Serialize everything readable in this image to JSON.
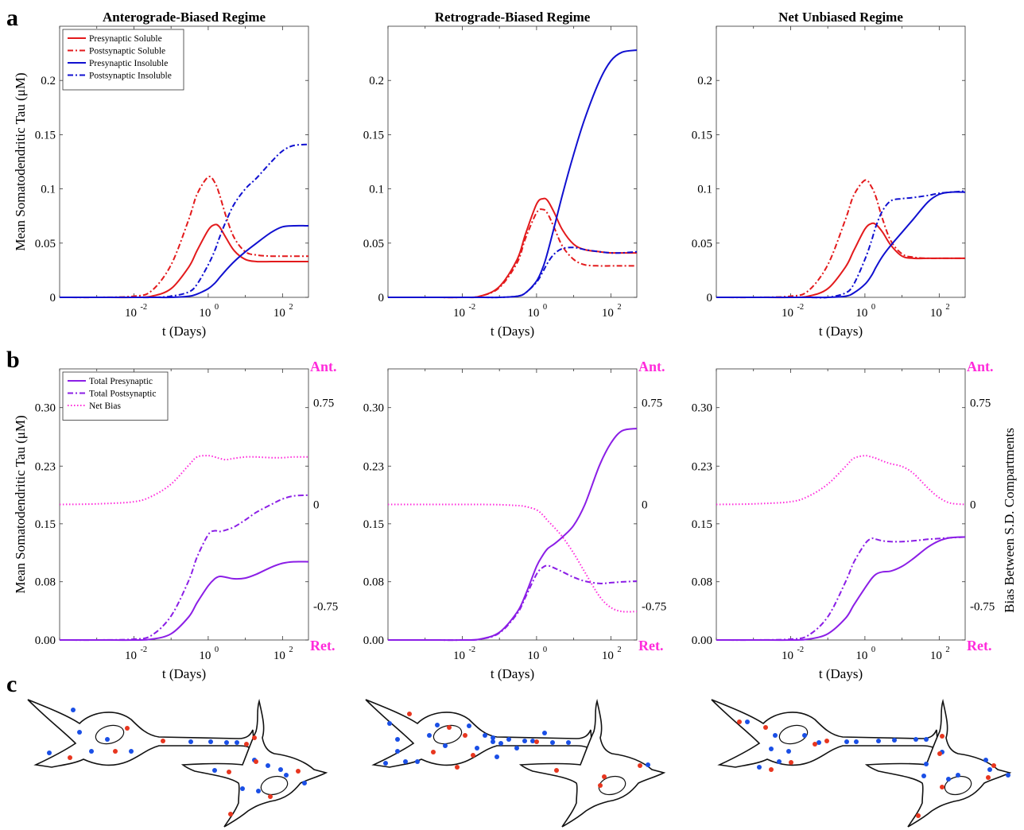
{
  "panel_letters": [
    "a",
    "b",
    "c"
  ],
  "colors": {
    "red": "#e31a1c",
    "blue": "#1010d0",
    "purple": "#8b1ee6",
    "magenta": "#ff2bdb",
    "dot_red": "#e8361f",
    "dot_blue": "#1a4fe6"
  },
  "shared": {
    "xlabel": "t (Days)",
    "ylabel": "Mean Somatodendritic Tau (μM)",
    "y2label": "Bias Between S.D. Compartments",
    "ant_label": "Ant.",
    "ret_label": "Ret."
  },
  "chart_data": [
    {
      "type": "line",
      "row": "a",
      "title": "Anterograde-Biased Regime",
      "xscale": "log",
      "xlim": [
        0.0001,
        500
      ],
      "ylim": [
        0,
        0.25
      ],
      "ytick_labels": [
        "0",
        "0.05",
        "0.1",
        "0.15",
        "0.2"
      ],
      "xtick_labels": [
        {
          "base": "10",
          "exp": "-2"
        },
        {
          "base": "10",
          "exp": "0"
        },
        {
          "base": "10",
          "exp": "2"
        }
      ],
      "legend": "top-left",
      "grid": false,
      "x": [
        0.0001,
        0.001,
        0.01,
        0.03,
        0.1,
        0.3,
        0.5,
        1,
        1.5,
        2,
        3,
        5,
        10,
        20,
        50,
        100,
        200,
        500
      ],
      "series": [
        {
          "name": "Presynaptic Soluble",
          "color": "red",
          "dash": "solid",
          "values": [
            0,
            0,
            0,
            0.001,
            0.008,
            0.028,
            0.043,
            0.062,
            0.067,
            0.065,
            0.055,
            0.043,
            0.035,
            0.033,
            0.033,
            0.033,
            0.033,
            0.033
          ]
        },
        {
          "name": "Postsynaptic Soluble",
          "color": "red",
          "dash": "dashdot",
          "values": [
            0,
            0,
            0.001,
            0.006,
            0.03,
            0.072,
            0.095,
            0.111,
            0.106,
            0.095,
            0.075,
            0.055,
            0.042,
            0.039,
            0.038,
            0.038,
            0.038,
            0.038
          ]
        },
        {
          "name": "Presynaptic Insoluble",
          "color": "blue",
          "dash": "solid",
          "values": [
            0,
            0,
            0,
            0,
            0,
            0.001,
            0.003,
            0.008,
            0.013,
            0.018,
            0.025,
            0.033,
            0.042,
            0.05,
            0.06,
            0.065,
            0.066,
            0.066
          ]
        },
        {
          "name": "Postsynaptic Insoluble",
          "color": "blue",
          "dash": "dashdot",
          "values": [
            0,
            0,
            0,
            0,
            0.001,
            0.005,
            0.012,
            0.03,
            0.043,
            0.055,
            0.07,
            0.086,
            0.1,
            0.11,
            0.125,
            0.135,
            0.14,
            0.141
          ]
        }
      ]
    },
    {
      "type": "line",
      "row": "a",
      "title": "Retrograde-Biased Regime",
      "xscale": "log",
      "xlim": [
        0.0001,
        500
      ],
      "ylim": [
        0,
        0.25
      ],
      "ytick_labels": [
        "0",
        "0.05",
        "0.1",
        "0.15",
        "0.2"
      ],
      "xtick_labels": [
        {
          "base": "10",
          "exp": "-2"
        },
        {
          "base": "10",
          "exp": "0"
        },
        {
          "base": "10",
          "exp": "2"
        }
      ],
      "grid": false,
      "x": [
        0.0001,
        0.001,
        0.01,
        0.03,
        0.1,
        0.3,
        0.5,
        1,
        1.5,
        2,
        3,
        5,
        10,
        20,
        50,
        100,
        200,
        500
      ],
      "series": [
        {
          "values": [
            0,
            0,
            0,
            0.001,
            0.01,
            0.035,
            0.058,
            0.086,
            0.091,
            0.089,
            0.078,
            0.062,
            0.049,
            0.044,
            0.042,
            0.041,
            0.041,
            0.041
          ]
        },
        {
          "values": [
            0,
            0,
            0,
            0.001,
            0.009,
            0.032,
            0.054,
            0.078,
            0.081,
            0.077,
            0.064,
            0.047,
            0.035,
            0.03,
            0.029,
            0.029,
            0.029,
            0.029
          ]
        },
        {
          "values": [
            0,
            0,
            0,
            0,
            0,
            0.001,
            0.004,
            0.015,
            0.028,
            0.042,
            0.065,
            0.095,
            0.132,
            0.165,
            0.2,
            0.218,
            0.226,
            0.228
          ]
        },
        {
          "values": [
            0,
            0,
            0,
            0,
            0,
            0.001,
            0.004,
            0.014,
            0.024,
            0.032,
            0.04,
            0.045,
            0.046,
            0.044,
            0.042,
            0.041,
            0.041,
            0.042
          ]
        }
      ]
    },
    {
      "type": "line",
      "row": "a",
      "title": "Net Unbiased Regime",
      "xscale": "log",
      "xlim": [
        0.0001,
        500
      ],
      "ylim": [
        0,
        0.25
      ],
      "ytick_labels": [
        "0",
        "0.05",
        "0.1",
        "0.15",
        "0.2"
      ],
      "xtick_labels": [
        {
          "base": "10",
          "exp": "-2"
        },
        {
          "base": "10",
          "exp": "0"
        },
        {
          "base": "10",
          "exp": "2"
        }
      ],
      "grid": false,
      "x": [
        0.0001,
        0.001,
        0.01,
        0.03,
        0.1,
        0.3,
        0.5,
        1,
        1.5,
        2,
        3,
        5,
        10,
        20,
        50,
        100,
        200,
        500
      ],
      "series": [
        {
          "values": [
            0,
            0,
            0,
            0.001,
            0.008,
            0.028,
            0.043,
            0.063,
            0.068,
            0.067,
            0.06,
            0.048,
            0.038,
            0.036,
            0.036,
            0.036,
            0.036,
            0.036
          ]
        },
        {
          "values": [
            0,
            0,
            0.001,
            0.006,
            0.03,
            0.072,
            0.094,
            0.108,
            0.102,
            0.092,
            0.072,
            0.052,
            0.04,
            0.037,
            0.036,
            0.036,
            0.036,
            0.036
          ]
        },
        {
          "values": [
            0,
            0,
            0,
            0,
            0,
            0.001,
            0.004,
            0.012,
            0.02,
            0.028,
            0.038,
            0.048,
            0.06,
            0.072,
            0.088,
            0.095,
            0.097,
            0.097
          ]
        },
        {
          "values": [
            0,
            0,
            0,
            0,
            0,
            0.004,
            0.012,
            0.035,
            0.052,
            0.066,
            0.08,
            0.089,
            0.091,
            0.092,
            0.094,
            0.096,
            0.097,
            0.098
          ]
        }
      ]
    },
    {
      "type": "line",
      "row": "b",
      "xscale": "log",
      "xlim": [
        0.0001,
        500
      ],
      "ylim": [
        0,
        0.35
      ],
      "ytick_labels": [
        "0.00",
        "0.08",
        "0.15",
        "0.23",
        "0.30"
      ],
      "y2lim": [
        -1,
        1
      ],
      "y2tick_labels": [
        "-0.75",
        "0",
        "0.75"
      ],
      "xtick_labels": [
        {
          "base": "10",
          "exp": "-2"
        },
        {
          "base": "10",
          "exp": "0"
        },
        {
          "base": "10",
          "exp": "2"
        }
      ],
      "legend": "top-left",
      "grid": false,
      "x": [
        0.0001,
        0.001,
        0.01,
        0.03,
        0.1,
        0.3,
        0.5,
        1,
        1.5,
        2,
        3,
        5,
        10,
        20,
        50,
        100,
        200,
        500
      ],
      "series": [
        {
          "name": "Total Presynaptic",
          "color": "purple",
          "dash": "solid",
          "axis": "left",
          "values": [
            0,
            0,
            0,
            0.001,
            0.008,
            0.03,
            0.048,
            0.07,
            0.079,
            0.082,
            0.081,
            0.079,
            0.08,
            0.085,
            0.094,
            0.099,
            0.101,
            0.101
          ]
        },
        {
          "name": "Total Postsynaptic",
          "color": "purple",
          "dash": "dashdot",
          "axis": "left",
          "values": [
            0,
            0,
            0.001,
            0.006,
            0.031,
            0.077,
            0.107,
            0.136,
            0.141,
            0.14,
            0.142,
            0.146,
            0.155,
            0.165,
            0.175,
            0.182,
            0.186,
            0.187
          ]
        },
        {
          "name": "Net Bias",
          "color": "magenta",
          "dash": "dotted",
          "axis": "right",
          "values": [
            0,
            0.004,
            0.02,
            0.06,
            0.15,
            0.29,
            0.35,
            0.36,
            0.35,
            0.34,
            0.33,
            0.34,
            0.35,
            0.35,
            0.345,
            0.345,
            0.35,
            0.35
          ]
        }
      ]
    },
    {
      "type": "line",
      "row": "b",
      "xscale": "log",
      "xlim": [
        0.0001,
        500
      ],
      "ylim": [
        0,
        0.35
      ],
      "ytick_labels": [
        "0.00",
        "0.08",
        "0.15",
        "0.23",
        "0.30"
      ],
      "y2lim": [
        -1,
        1
      ],
      "y2tick_labels": [
        "-0.75",
        "0",
        "0.75"
      ],
      "xtick_labels": [
        {
          "base": "10",
          "exp": "-2"
        },
        {
          "base": "10",
          "exp": "0"
        },
        {
          "base": "10",
          "exp": "2"
        }
      ],
      "grid": false,
      "x": [
        0.0001,
        0.001,
        0.01,
        0.03,
        0.1,
        0.3,
        0.5,
        1,
        1.5,
        2,
        3,
        5,
        10,
        20,
        50,
        100,
        200,
        500
      ],
      "series": [
        {
          "values": [
            0,
            0,
            0,
            0.001,
            0.01,
            0.036,
            0.058,
            0.095,
            0.11,
            0.118,
            0.124,
            0.133,
            0.148,
            0.175,
            0.226,
            0.254,
            0.27,
            0.273
          ]
        },
        {
          "values": [
            0,
            0,
            0,
            0.001,
            0.009,
            0.034,
            0.055,
            0.085,
            0.094,
            0.096,
            0.093,
            0.088,
            0.081,
            0.076,
            0.073,
            0.074,
            0.075,
            0.076
          ]
        },
        {
          "values": [
            0,
            0,
            0,
            0,
            -0.002,
            -0.008,
            -0.015,
            -0.04,
            -0.08,
            -0.12,
            -0.17,
            -0.24,
            -0.36,
            -0.5,
            -0.68,
            -0.76,
            -0.79,
            -0.79
          ]
        }
      ]
    },
    {
      "type": "line",
      "row": "b",
      "xscale": "log",
      "xlim": [
        0.0001,
        500
      ],
      "ylim": [
        0,
        0.35
      ],
      "ytick_labels": [
        "0.00",
        "0.08",
        "0.15",
        "0.23",
        "0.30"
      ],
      "y2lim": [
        -1,
        1
      ],
      "y2tick_labels": [
        "-0.75",
        "0",
        "0.75"
      ],
      "xtick_labels": [
        {
          "base": "10",
          "exp": "-2"
        },
        {
          "base": "10",
          "exp": "0"
        },
        {
          "base": "10",
          "exp": "2"
        }
      ],
      "grid": false,
      "x": [
        0.0001,
        0.001,
        0.01,
        0.03,
        0.1,
        0.3,
        0.5,
        1,
        1.5,
        2,
        3,
        5,
        10,
        20,
        50,
        100,
        200,
        500
      ],
      "series": [
        {
          "values": [
            0,
            0,
            0,
            0.001,
            0.008,
            0.028,
            0.045,
            0.067,
            0.079,
            0.085,
            0.088,
            0.089,
            0.095,
            0.105,
            0.12,
            0.128,
            0.132,
            0.133
          ]
        },
        {
          "values": [
            0,
            0,
            0.001,
            0.006,
            0.03,
            0.075,
            0.1,
            0.124,
            0.131,
            0.13,
            0.128,
            0.127,
            0.127,
            0.128,
            0.13,
            0.131,
            0.132,
            0.133
          ]
        },
        {
          "values": [
            0,
            0.004,
            0.02,
            0.06,
            0.15,
            0.28,
            0.34,
            0.36,
            0.35,
            0.34,
            0.32,
            0.3,
            0.28,
            0.23,
            0.12,
            0.05,
            0.01,
            0
          ]
        }
      ]
    }
  ]
}
